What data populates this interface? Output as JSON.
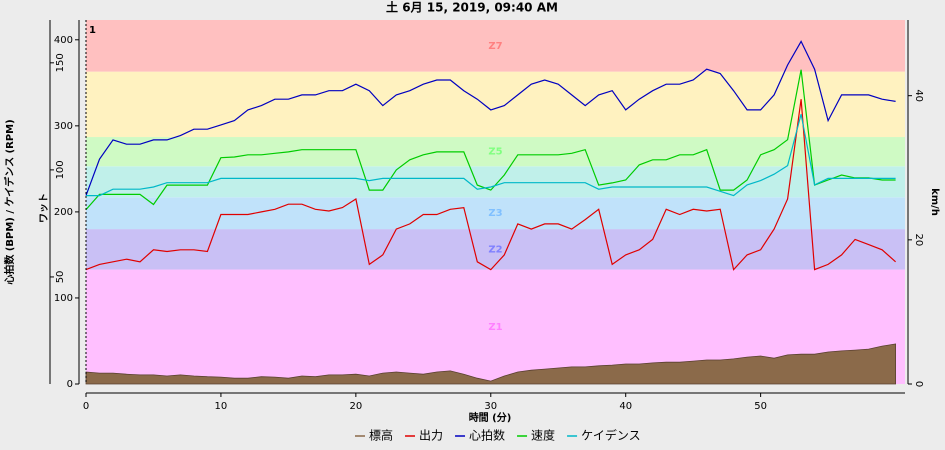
{
  "chart_data": {
    "type": "line",
    "title": "土 6月 15, 2019, 09:40 AM",
    "xlabel": "時間 (分)",
    "xlim": [
      0,
      60.7
    ],
    "xticks": [
      0,
      10,
      20,
      30,
      40,
      50
    ],
    "x": [
      0,
      1,
      2,
      3,
      4,
      5,
      6,
      7,
      8,
      9,
      10,
      11,
      12,
      13,
      14,
      15,
      16,
      17,
      18,
      19,
      20,
      21,
      22,
      23,
      24,
      25,
      26,
      27,
      28,
      29,
      30,
      31,
      32,
      33,
      34,
      35,
      36,
      37,
      38,
      39,
      40,
      41,
      42,
      43,
      44,
      45,
      46,
      47,
      48,
      49,
      50,
      51,
      52,
      53,
      54,
      55,
      56,
      57,
      58,
      59,
      60
    ],
    "axes": {
      "hr": {
        "label": "心拍数 (BPM) / ケイデンス (RPM)",
        "ylim": [
          0,
          170
        ],
        "yticks": [
          50,
          100,
          150
        ]
      },
      "power": {
        "label": "ワット",
        "ylim": [
          0,
          423
        ],
        "yticks": [
          0,
          100,
          200,
          300,
          400
        ]
      },
      "speed": {
        "label": "km/h",
        "ylim": [
          0,
          50.5
        ],
        "yticks": [
          0,
          20,
          40
        ]
      },
      "elev": {
        "ylim": [
          0,
          100
        ]
      }
    },
    "zones": [
      {
        "from": 0,
        "to": 133,
        "color": "#ffbfff",
        "label": "Z1",
        "label_color": "#ff80ff"
      },
      {
        "from": 133,
        "to": 180,
        "color": "#c9c0f5",
        "label": "Z2",
        "label_color": "#8080ff"
      },
      {
        "from": 180,
        "to": 217,
        "color": "#c0e2fa",
        "label": "Z3",
        "label_color": "#80c0ff"
      },
      {
        "from": 217,
        "to": 253,
        "color": "#c0f0ea"
      },
      {
        "from": 253,
        "to": 287,
        "color": "#cffac4",
        "label": "Z5",
        "label_color": "#80ff80"
      },
      {
        "from": 287,
        "to": 363,
        "color": "#fff2c0"
      },
      {
        "from": 363,
        "to": 423,
        "color": "#ffc0c0",
        "label": "Z7",
        "label_color": "#ff8080"
      }
    ],
    "laps": [
      {
        "x": 0,
        "label": "1"
      }
    ],
    "series": [
      {
        "name": "標高",
        "color": "#8b6a4a",
        "axis": "elev",
        "area": true,
        "values": [
          3.3,
          3,
          3,
          2.7,
          2.5,
          2.5,
          2.2,
          2.5,
          2.2,
          2,
          1.9,
          1.6,
          1.6,
          2,
          1.9,
          1.6,
          2.2,
          2,
          2.5,
          2.5,
          2.7,
          2.2,
          3,
          3.3,
          3,
          2.7,
          3.3,
          3.6,
          2.7,
          1.6,
          0.8,
          2.2,
          3.3,
          3.8,
          4.1,
          4.4,
          4.7,
          4.7,
          5,
          5.2,
          5.5,
          5.5,
          5.8,
          6,
          6,
          6.3,
          6.6,
          6.6,
          6.9,
          7.4,
          7.7,
          7.1,
          8,
          8.2,
          8.2,
          8.8,
          9.1,
          9.3,
          9.6,
          10.4,
          11
        ]
      },
      {
        "name": "出力",
        "color": "#e00000",
        "axis": "power",
        "values": [
          133,
          139,
          142,
          145,
          142,
          156,
          154,
          156,
          156,
          154,
          197,
          197,
          197,
          200,
          203,
          209,
          209,
          203,
          201,
          205,
          215,
          139,
          150,
          180,
          186,
          197,
          197,
          203,
          205,
          142,
          133,
          150,
          186,
          180,
          186,
          186,
          180,
          191,
          203,
          139,
          150,
          156,
          168,
          203,
          197,
          203,
          201,
          203,
          133,
          150,
          156,
          180,
          215,
          331,
          133,
          139,
          150,
          168,
          162,
          156,
          142
        ]
      },
      {
        "name": "心拍数",
        "color": "#0000c0",
        "axis": "hr",
        "values": [
          88,
          105,
          114,
          112,
          112,
          114,
          114,
          116,
          119,
          119,
          121,
          123,
          128,
          130,
          133,
          133,
          135,
          135,
          137,
          137,
          140,
          137,
          130,
          135,
          137,
          140,
          142,
          142,
          137,
          133,
          128,
          130,
          135,
          140,
          142,
          140,
          135,
          130,
          135,
          137,
          128,
          133,
          137,
          140,
          140,
          142,
          147,
          145,
          137,
          128,
          128,
          135,
          149,
          160,
          147,
          123,
          135,
          135,
          135,
          133,
          132
        ]
      },
      {
        "name": "速度",
        "color": "#00cc00",
        "axis": "speed",
        "values": [
          24.2,
          26.3,
          26.3,
          26.3,
          26.3,
          24.9,
          27.6,
          27.6,
          27.6,
          27.6,
          31.4,
          31.5,
          31.8,
          31.8,
          32,
          32.2,
          32.5,
          32.5,
          32.5,
          32.5,
          32.5,
          26.9,
          26.9,
          29.7,
          31.1,
          31.8,
          32.2,
          32.2,
          32.2,
          27.6,
          26.9,
          29,
          31.8,
          31.8,
          31.8,
          31.8,
          32,
          32.5,
          27.6,
          27.9,
          28.3,
          30.4,
          31.1,
          31.1,
          31.8,
          31.8,
          32.5,
          26.9,
          26.9,
          28.3,
          31.8,
          32.5,
          33.9,
          43.6,
          27.6,
          28.3,
          29,
          28.6,
          28.6,
          28.3,
          28.3
        ]
      },
      {
        "name": "ケイデンス",
        "color": "#00b8c8",
        "axis": "hr",
        "values": [
          88,
          88,
          91,
          91,
          91,
          92,
          94,
          94,
          94,
          94,
          96,
          96,
          96,
          96,
          96,
          96,
          96,
          96,
          96,
          96,
          96,
          95,
          96,
          96,
          96,
          96,
          96,
          96,
          96,
          91,
          92,
          94,
          94,
          94,
          94,
          94,
          94,
          94,
          91,
          92,
          92,
          92,
          92,
          92,
          92,
          92,
          92,
          90,
          88,
          93,
          95,
          98,
          102,
          126,
          93,
          96,
          96,
          96,
          96,
          96,
          96
        ]
      }
    ]
  }
}
